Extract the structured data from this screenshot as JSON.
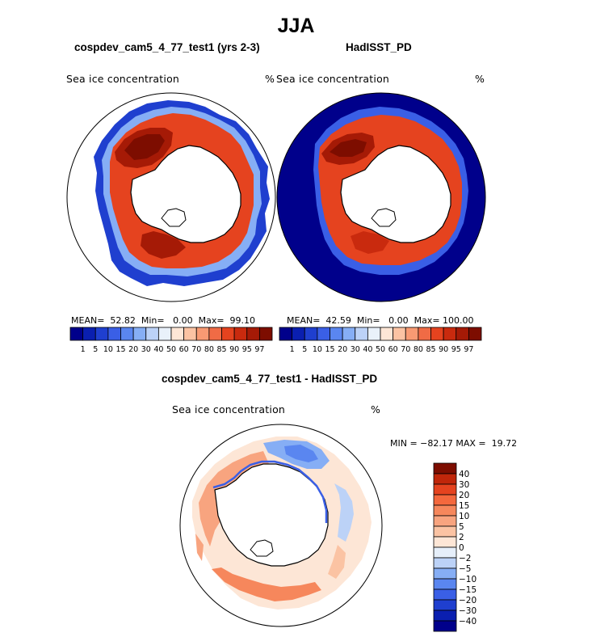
{
  "figure": {
    "title": "JJA"
  },
  "panels": {
    "model": {
      "title": "cospdev_cam5_4_77_test1 (yrs 2-3)",
      "variable": "Sea ice concentration",
      "units": "%",
      "stats": "MEAN=  52.82  Min=   0.00  Max=  99.10"
    },
    "obs": {
      "title": "HadISST_PD",
      "variable": "Sea ice concentration",
      "units": "%",
      "stats": "MEAN=  42.59  Min=   0.00  Max= 100.00"
    },
    "diff": {
      "title": "cospdev_cam5_4_77_test1 - HadISST_PD",
      "variable": "Sea ice concentration",
      "units": "%",
      "minmax": "MIN = −82.17 MAX =  19.72"
    }
  },
  "colorbar_top": {
    "labels": [
      "1",
      "5",
      "10",
      "15",
      "20",
      "30",
      "40",
      "50",
      "60",
      "70",
      "80",
      "85",
      "90",
      "95",
      "97"
    ],
    "colors": [
      "#00008b",
      "#0a1fb0",
      "#1f3fcf",
      "#3a5fe6",
      "#5a86f0",
      "#86aef5",
      "#bcd2f7",
      "#e9f1fa",
      "#fde6d6",
      "#fbc3a3",
      "#f89a73",
      "#f06b45",
      "#e5431f",
      "#c92a0e",
      "#a51a06",
      "#7d0d00"
    ]
  },
  "colorbar_diff": {
    "labels": [
      "40",
      "30",
      "20",
      "15",
      "10",
      "5",
      "2",
      "0",
      "−2",
      "−5",
      "−10",
      "−15",
      "−20",
      "−30",
      "−40"
    ],
    "colors": [
      "#7d0d00",
      "#c0260a",
      "#e5431f",
      "#f4683d",
      "#f6875c",
      "#f8a47f",
      "#fbc3a3",
      "#fde6d6",
      "#e6effa",
      "#bcd2f7",
      "#86aef5",
      "#5a86f0",
      "#3a5fe6",
      "#1f3fcf",
      "#0a1fb0",
      "#00008b"
    ]
  },
  "chart_data": [
    {
      "type": "heatmap",
      "title": "cospdev_cam5_4_77_test1 (yrs 2-3)",
      "projection": "south polar stereographic",
      "variable": "Sea ice concentration",
      "units": "%",
      "mean": 52.82,
      "min": 0.0,
      "max": 99.1,
      "levels": [
        1,
        5,
        10,
        15,
        20,
        30,
        40,
        50,
        60,
        70,
        80,
        85,
        90,
        95,
        97
      ]
    },
    {
      "type": "heatmap",
      "title": "HadISST_PD",
      "projection": "south polar stereographic",
      "variable": "Sea ice concentration",
      "units": "%",
      "mean": 42.59,
      "min": 0.0,
      "max": 100.0,
      "levels": [
        1,
        5,
        10,
        15,
        20,
        30,
        40,
        50,
        60,
        70,
        80,
        85,
        90,
        95,
        97
      ]
    },
    {
      "type": "heatmap",
      "title": "cospdev_cam5_4_77_test1 - HadISST_PD",
      "projection": "south polar stereographic",
      "variable": "Sea ice concentration",
      "units": "%",
      "min": -82.17,
      "max": 19.72,
      "levels": [
        -40,
        -30,
        -20,
        -15,
        -10,
        -5,
        -2,
        0,
        2,
        5,
        10,
        15,
        20,
        30,
        40
      ]
    }
  ]
}
